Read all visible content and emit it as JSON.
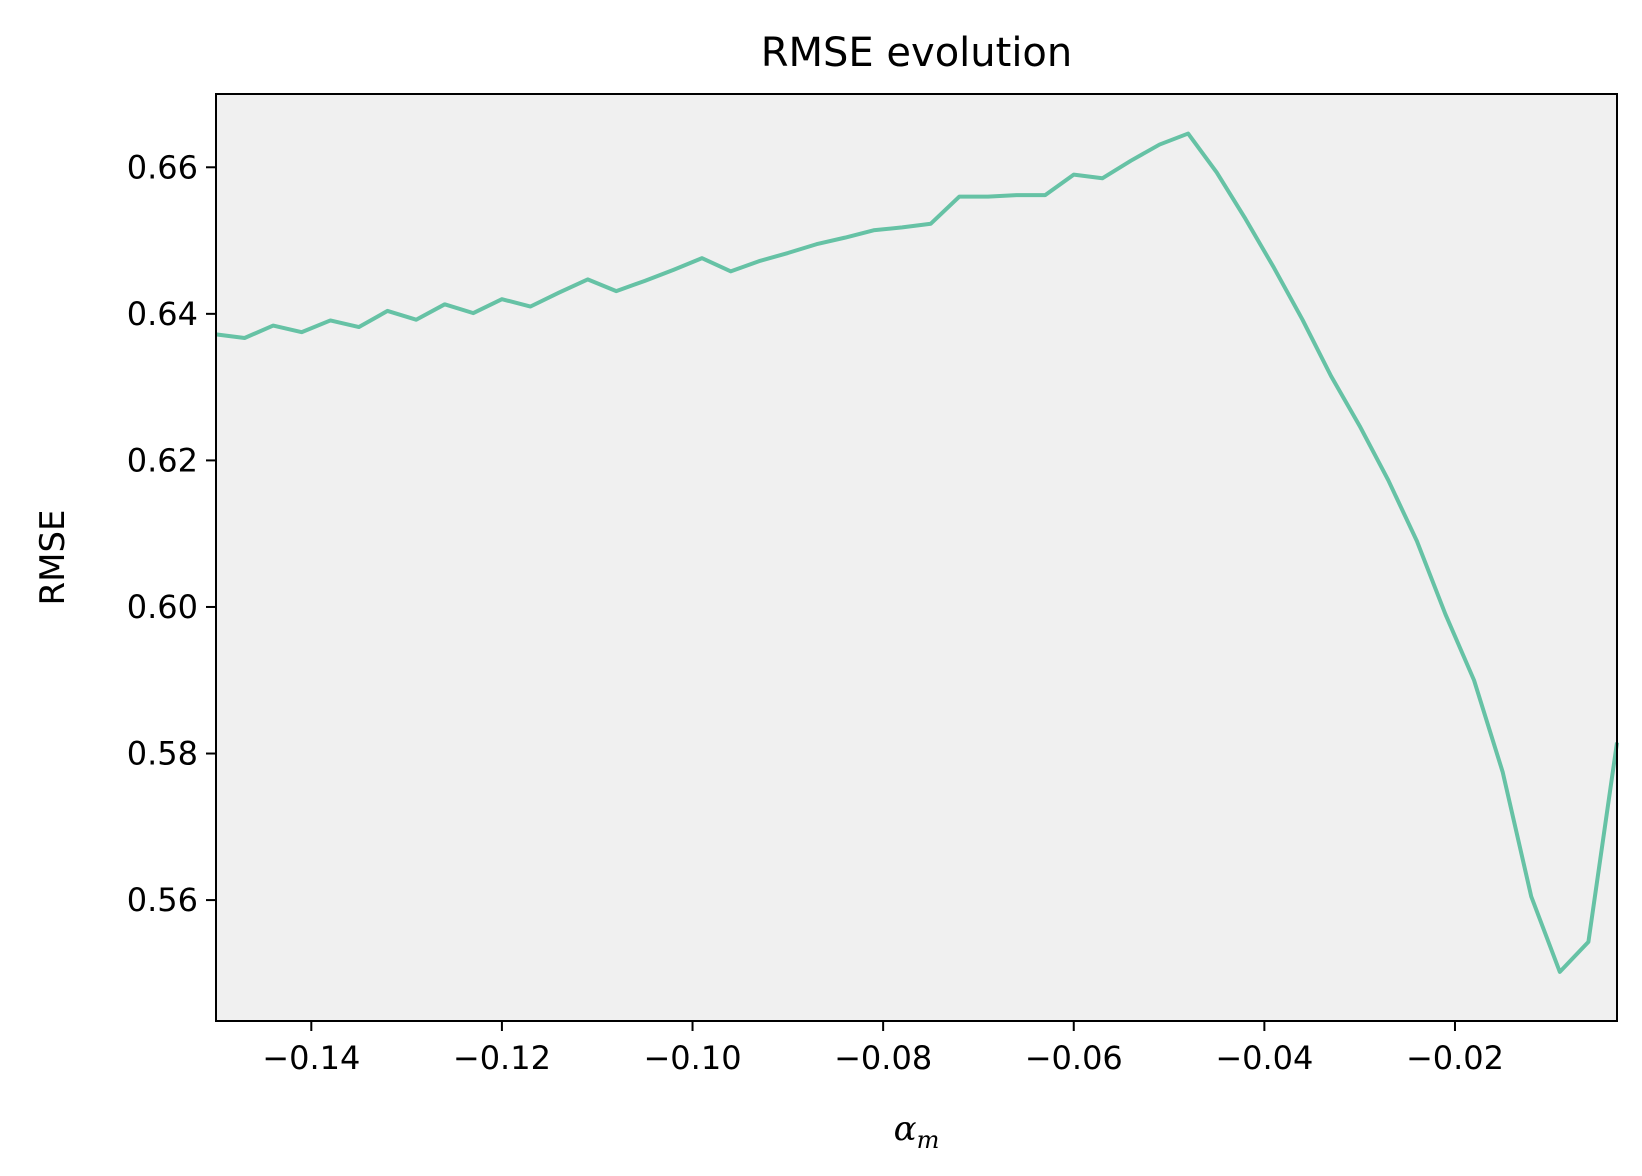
{
  "chart_data": {
    "type": "line",
    "title": "RMSE evolution",
    "xlabel": "α",
    "xlabel_subscript": "m",
    "ylabel": "RMSE",
    "xlim": [
      -0.15,
      -0.003
    ],
    "ylim": [
      0.5435,
      0.67
    ],
    "xticks": [
      -0.14,
      -0.12,
      -0.1,
      -0.08,
      -0.06,
      -0.04,
      -0.02
    ],
    "xtick_labels": [
      "−0.14",
      "−0.12",
      "−0.10",
      "−0.08",
      "−0.06",
      "−0.04",
      "−0.02"
    ],
    "yticks": [
      0.56,
      0.58,
      0.6,
      0.62,
      0.64,
      0.66
    ],
    "ytick_labels": [
      "0.56",
      "0.58",
      "0.60",
      "0.62",
      "0.64",
      "0.66"
    ],
    "grid": false,
    "background_color": "#f0f0f0",
    "line_color": "#66c2a5",
    "series": [
      {
        "x": [
          -0.15,
          -0.147,
          -0.144,
          -0.141,
          -0.138,
          -0.135,
          -0.132,
          -0.129,
          -0.126,
          -0.123,
          -0.12,
          -0.117,
          -0.114,
          -0.111,
          -0.108,
          -0.105,
          -0.102,
          -0.099,
          -0.096,
          -0.093,
          -0.09,
          -0.087,
          -0.084,
          -0.081,
          -0.078,
          -0.075,
          -0.072,
          -0.069,
          -0.066,
          -0.063,
          -0.06,
          -0.057,
          -0.054,
          -0.051,
          -0.048,
          -0.045,
          -0.042,
          -0.039,
          -0.036,
          -0.033,
          -0.03,
          -0.027,
          -0.024,
          -0.021,
          -0.018,
          -0.015,
          -0.012,
          -0.009,
          -0.006,
          -0.003
        ],
        "y": [
          0.6372,
          0.6367,
          0.6384,
          0.6375,
          0.6391,
          0.6382,
          0.6404,
          0.6392,
          0.6413,
          0.6401,
          0.642,
          0.641,
          0.6429,
          0.6447,
          0.6431,
          0.6445,
          0.646,
          0.6476,
          0.6458,
          0.6472,
          0.6483,
          0.6495,
          0.6504,
          0.6514,
          0.6518,
          0.6523,
          0.656,
          0.656,
          0.6562,
          0.6562,
          0.659,
          0.6585,
          0.6609,
          0.6631,
          0.6646,
          0.6593,
          0.653,
          0.6463,
          0.6392,
          0.6315,
          0.6247,
          0.6173,
          0.609,
          0.599,
          0.59,
          0.5775,
          0.5605,
          0.5502,
          0.5543,
          0.5815
        ]
      }
    ]
  }
}
